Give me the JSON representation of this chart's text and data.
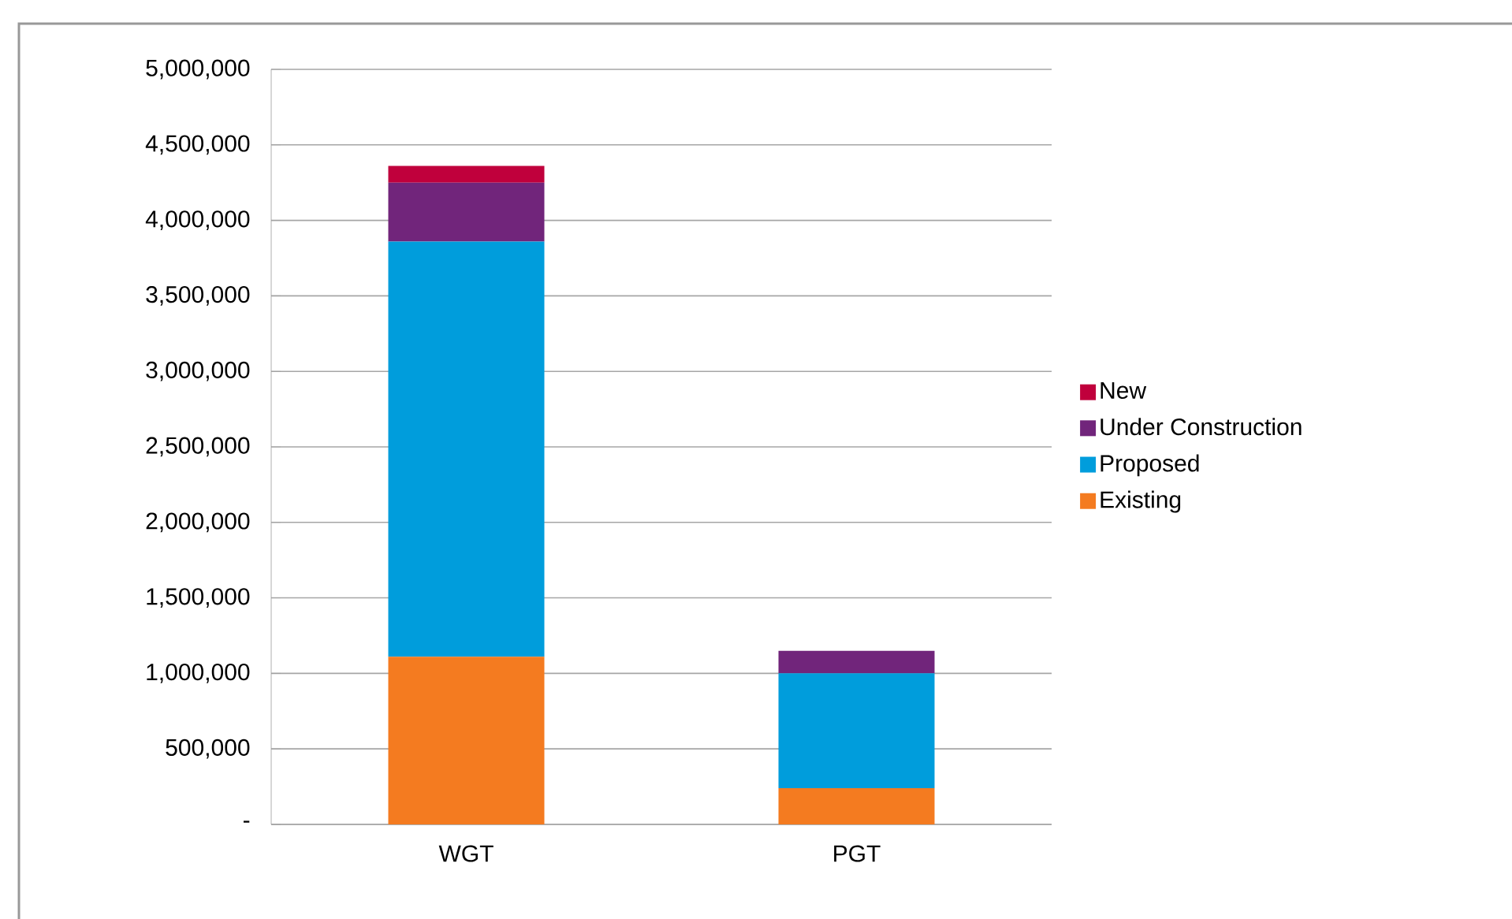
{
  "chart_data": {
    "type": "bar",
    "stacked": true,
    "categories": [
      "WGT",
      "PGT"
    ],
    "series": [
      {
        "name": "Existing",
        "color": "#f47b20",
        "values": [
          1110000,
          240000
        ]
      },
      {
        "name": "Proposed",
        "color": "#009ddc",
        "values": [
          2750000,
          760000
        ]
      },
      {
        "name": "Under Construction",
        "color": "#71257b",
        "values": [
          390000,
          150000
        ]
      },
      {
        "name": "New",
        "color": "#c0003c",
        "values": [
          110000,
          0
        ]
      }
    ],
    "ylim": [
      0,
      5000000
    ],
    "yticks": [
      {
        "value": 0,
        "label": "-"
      },
      {
        "value": 500000,
        "label": "500,000"
      },
      {
        "value": 1000000,
        "label": "1,000,000"
      },
      {
        "value": 1500000,
        "label": "1,500,000"
      },
      {
        "value": 2000000,
        "label": "2,000,000"
      },
      {
        "value": 2500000,
        "label": "2,500,000"
      },
      {
        "value": 3000000,
        "label": "3,000,000"
      },
      {
        "value": 3500000,
        "label": "3,500,000"
      },
      {
        "value": 4000000,
        "label": "4,000,000"
      },
      {
        "value": 4500000,
        "label": "4,500,000"
      },
      {
        "value": 5000000,
        "label": "5,000,000"
      }
    ],
    "grid": "y",
    "legend": "right"
  }
}
